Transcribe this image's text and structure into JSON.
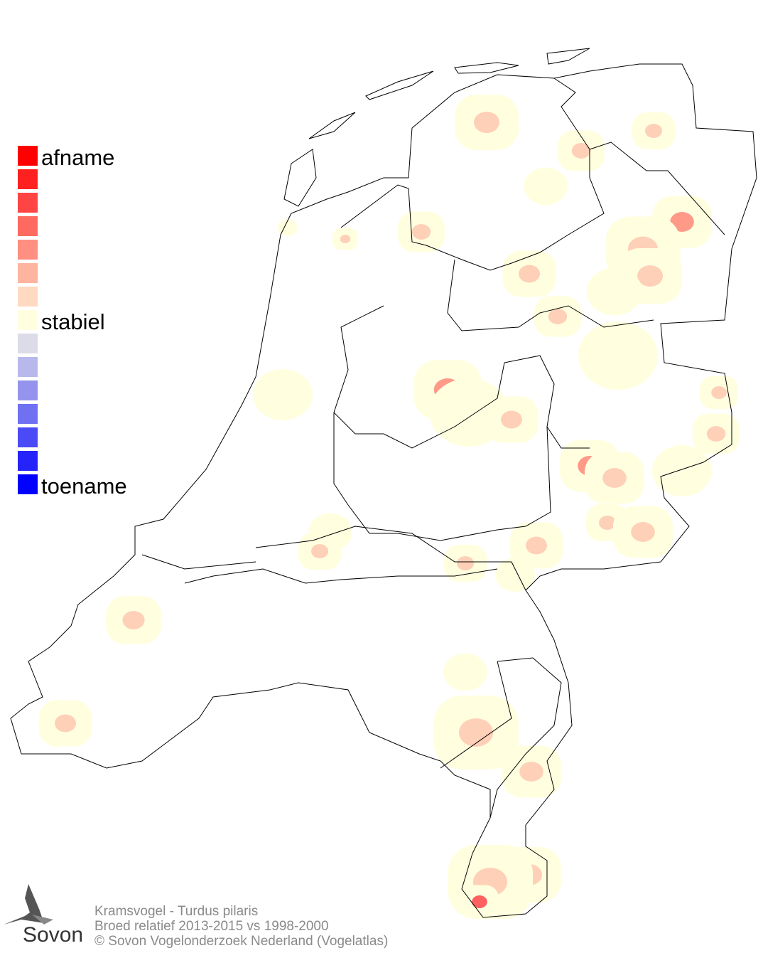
{
  "legend": {
    "labels": {
      "top": "afname",
      "middle": "stabiel",
      "bottom": "toename"
    },
    "colors": [
      "#ff0000",
      "#ff2020",
      "#ff4444",
      "#ff6a60",
      "#ff8f80",
      "#ffb4a0",
      "#ffd9c0",
      "#ffffe0",
      "#dcdce8",
      "#b8b8ec",
      "#9494ee",
      "#7070f2",
      "#4a4af6",
      "#2424fa",
      "#0000ff"
    ]
  },
  "footer": {
    "line1": "Kramsvogel - Turdus pilaris",
    "line2": "Broed relatief 2013-2015 vs 1998-2000",
    "line3": "© Sovon Vogelonderzoek Nederland (Vogelatlas)"
  },
  "logo": {
    "text": "Sovon"
  },
  "colors": {
    "stable": "#ffffe0",
    "decline_light": "#ffd0b8",
    "decline_mid": "#ff9a88",
    "decline_strong": "#ff6060",
    "outline": "#000000"
  }
}
